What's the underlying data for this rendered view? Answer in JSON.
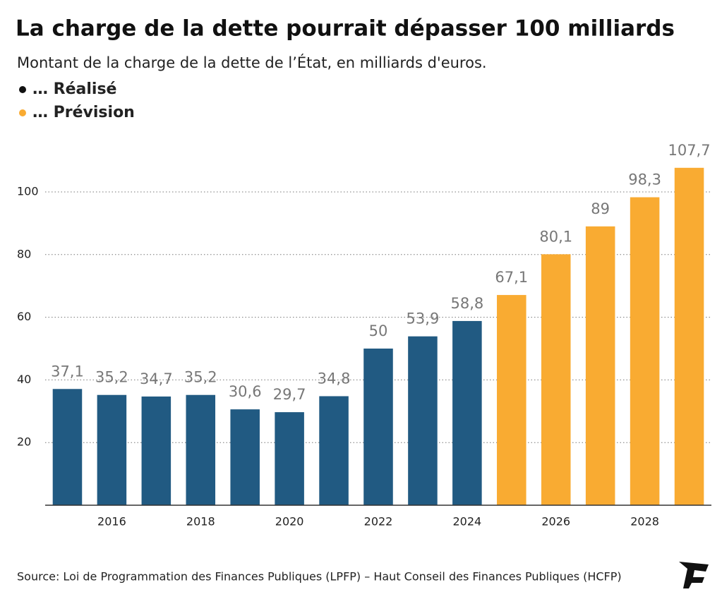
{
  "chart_data": {
    "type": "bar",
    "title": "La charge de la dette pourrait dépasser 100 milliards",
    "subtitle": "Montant de la charge de la dette de l’État, en milliards d'euros.",
    "source": "Source: Loi de Programmation des Finances Publiques (LPFP) – Haut Conseil des Finances Publiques (HCFP)",
    "categories": [
      null,
      "2016",
      null,
      "2018",
      null,
      "2020",
      null,
      "2022",
      null,
      "2024",
      null,
      "2026",
      null,
      "2028",
      null
    ],
    "series": [
      {
        "name": "… Réalisé",
        "color": "#215a82",
        "values": [
          37.1,
          35.2,
          34.7,
          35.2,
          30.6,
          29.7,
          34.8,
          50,
          53.9,
          58.8,
          null,
          null,
          null,
          null,
          null
        ],
        "value_labels": [
          "37,1",
          "35,2",
          "34,7",
          "35,2",
          "30,6",
          "29,7",
          "34,8",
          "50",
          "53,9",
          "58,8",
          null,
          null,
          null,
          null,
          null
        ]
      },
      {
        "name": "… Prévision",
        "color": "#f9ab32",
        "values": [
          null,
          null,
          null,
          null,
          null,
          null,
          null,
          null,
          null,
          null,
          67.1,
          80.1,
          89,
          98.3,
          107.7
        ],
        "value_labels": [
          null,
          null,
          null,
          null,
          null,
          null,
          null,
          null,
          null,
          null,
          "67,1",
          "80,1",
          "89",
          "98,3",
          "107,7"
        ]
      }
    ],
    "ylim": [
      0,
      110
    ],
    "yticks": [
      20,
      40,
      60,
      80,
      100
    ],
    "grid": true
  }
}
